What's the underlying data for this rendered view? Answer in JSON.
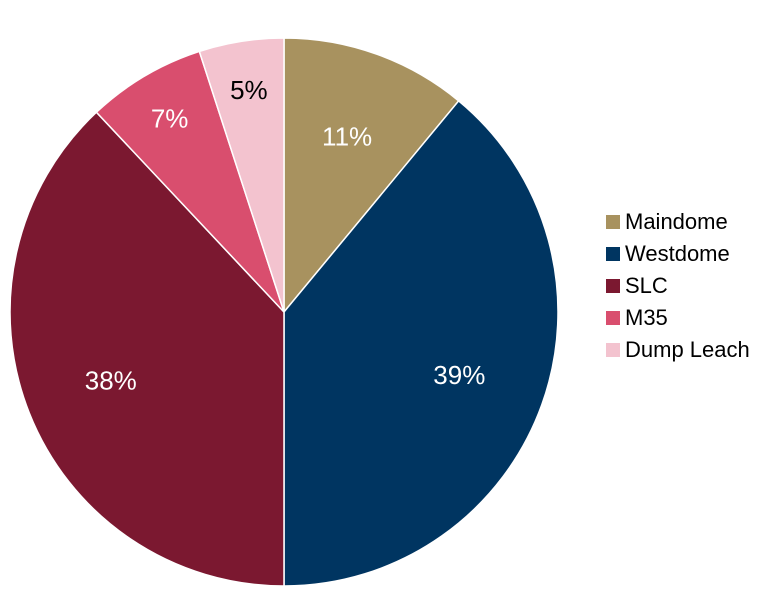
{
  "chart_data": {
    "type": "pie",
    "title": "",
    "legend_position": "right",
    "start_angle_deg": 0,
    "direction": "clockwise",
    "series": [
      {
        "name": "Maindome",
        "value": 11,
        "label": "11%",
        "color": "#A8925F",
        "label_color": "#ffffff"
      },
      {
        "name": "Westdome",
        "value": 39,
        "label": "39%",
        "color": "#003561",
        "label_color": "#ffffff"
      },
      {
        "name": "SLC",
        "value": 38,
        "label": "38%",
        "color": "#7B1830",
        "label_color": "#ffffff"
      },
      {
        "name": "M35",
        "value": 7,
        "label": "7%",
        "color": "#D94E6E",
        "label_color": "#ffffff"
      },
      {
        "name": "Dump Leach",
        "value": 5,
        "label": "5%",
        "color": "#F3C3CF",
        "label_color": "#000000"
      }
    ]
  }
}
